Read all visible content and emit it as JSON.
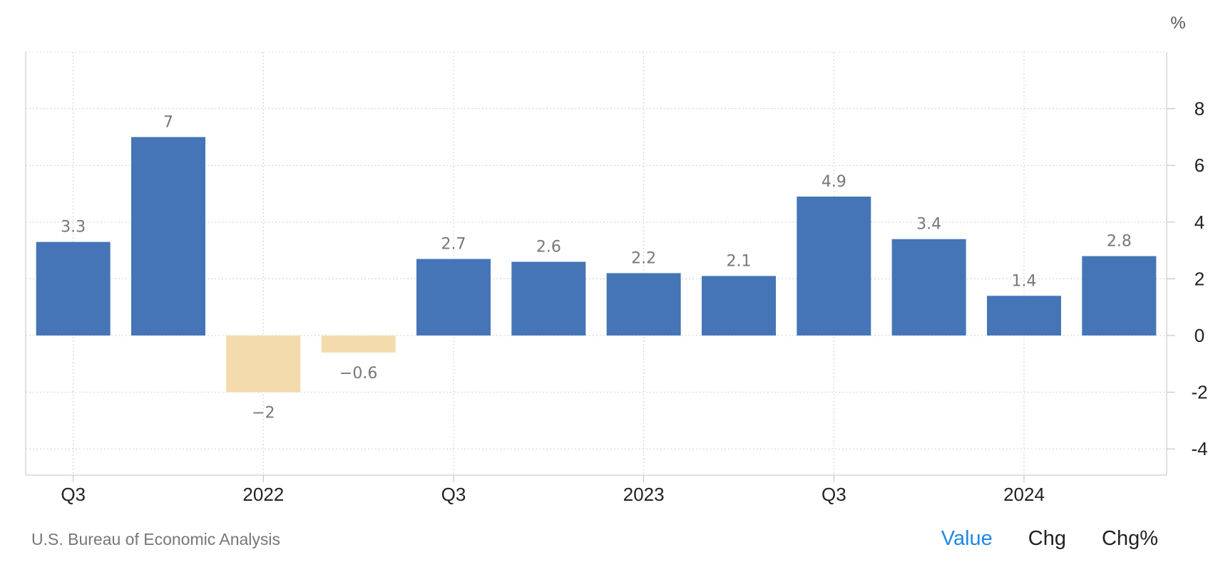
{
  "chart_data": {
    "type": "bar",
    "unit_label": "%",
    "x_tick_labels": [
      "Q3",
      "2022",
      "Q3",
      "2023",
      "Q3",
      "2024"
    ],
    "values": [
      3.3,
      7,
      -2,
      -0.6,
      2.7,
      2.6,
      2.2,
      2.1,
      4.9,
      3.4,
      1.4,
      2.8
    ],
    "data_labels": [
      "3.3",
      "7",
      "−2",
      "−0.6",
      "2.7",
      "2.6",
      "2.2",
      "2.1",
      "4.9",
      "3.4",
      "1.4",
      "2.8"
    ],
    "y_ticks": [
      8,
      6,
      4,
      2,
      0,
      -2,
      -4
    ],
    "ylim": [
      -5,
      10
    ],
    "grid": true,
    "colors": {
      "positive": "#4575b6",
      "negative": "#f3dbad"
    }
  },
  "footer": {
    "source": "U.S. Bureau of Economic Analysis",
    "toggles": [
      {
        "label": "Value",
        "active": true
      },
      {
        "label": "Chg",
        "active": false
      },
      {
        "label": "Chg%",
        "active": false
      }
    ]
  }
}
